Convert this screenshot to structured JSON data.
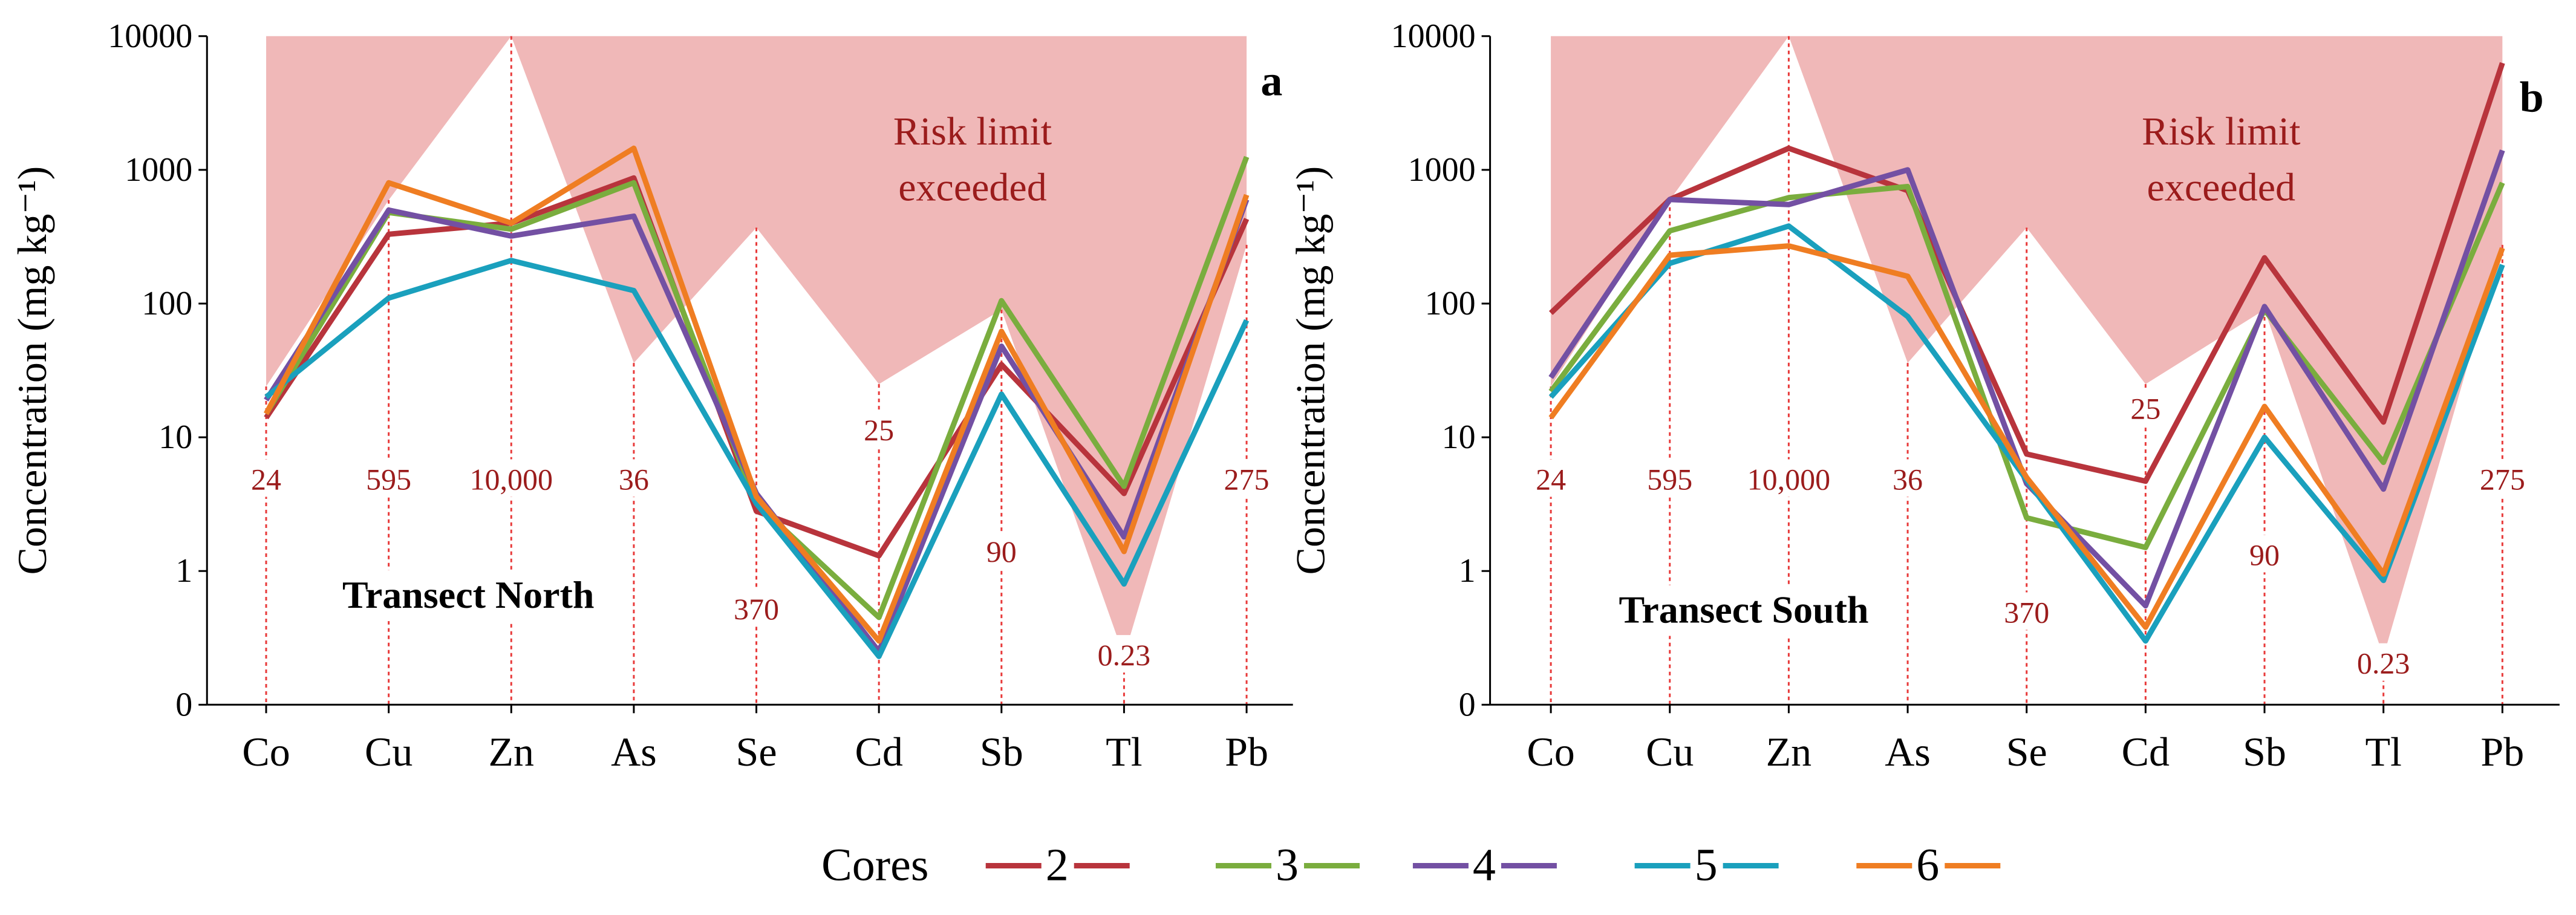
{
  "legend": {
    "title": "Cores",
    "entries": [
      "2",
      "3",
      "4",
      "5",
      "6"
    ],
    "colors": [
      "#b8343c",
      "#7aad3e",
      "#7350a3",
      "#1aa0bd",
      "#ef7d22"
    ]
  },
  "shading": {
    "color": "#f0b8b8"
  },
  "chart_data": [
    {
      "type": "line",
      "panel_letter": "a",
      "panel_title": "Transect North",
      "ylabel": "Concentration (mg kg⁻¹)",
      "yscale": "log (pseudo, 0 at bottom)",
      "yticks": [
        "10000",
        "1000",
        "100",
        "10",
        "1",
        "0"
      ],
      "categories": [
        "Co",
        "Cu",
        "Zn",
        "As",
        "Se",
        "Cd",
        "Sb",
        "Tl",
        "Pb"
      ],
      "shaded_region_label": "Risk limit exceeded",
      "risk_limits": [
        24,
        595,
        10000,
        36,
        370,
        25,
        90,
        0.23,
        275
      ],
      "risk_limit_labels": [
        "24",
        "595",
        "10,000",
        "36",
        "370",
        "25",
        "90",
        "0.23",
        "275"
      ],
      "series": [
        {
          "name": "2",
          "values": [
            14,
            330,
            400,
            870,
            2.8,
            1.3,
            35,
            3.8,
            430
          ]
        },
        {
          "name": "3",
          "values": [
            15,
            480,
            360,
            800,
            3.2,
            0.45,
            105,
            4.3,
            1250
          ]
        },
        {
          "name": "4",
          "values": [
            19,
            500,
            320,
            450,
            3.8,
            0.25,
            48,
            1.8,
            600
          ]
        },
        {
          "name": "5",
          "values": [
            20,
            110,
            210,
            125,
            3.2,
            0.23,
            21,
            0.8,
            75
          ]
        },
        {
          "name": "6",
          "values": [
            15,
            800,
            400,
            1450,
            3.6,
            0.3,
            62,
            1.4,
            650
          ]
        }
      ]
    },
    {
      "type": "line",
      "panel_letter": "b",
      "panel_title": "Transect South",
      "ylabel": "Concentration (mg kg⁻¹)",
      "yscale": "log (pseudo, 0 at bottom)",
      "yticks": [
        "10000",
        "1000",
        "100",
        "10",
        "1",
        "0"
      ],
      "categories": [
        "Co",
        "Cu",
        "Zn",
        "As",
        "Se",
        "Cd",
        "Sb",
        "Tl",
        "Pb"
      ],
      "shaded_region_label": "Risk limit exceeded",
      "risk_limits": [
        24,
        595,
        10000,
        36,
        370,
        25,
        90,
        0.23,
        275
      ],
      "risk_limit_labels": [
        "24",
        "595",
        "10,000",
        "36",
        "370",
        "25",
        "90",
        "0.23",
        "275"
      ],
      "series": [
        {
          "name": "2",
          "values": [
            85,
            600,
            1450,
            700,
            7.5,
            4.7,
            220,
            13,
            6300
          ]
        },
        {
          "name": "3",
          "values": [
            22,
            350,
            620,
            750,
            2.5,
            1.5,
            90,
            6.5,
            800
          ]
        },
        {
          "name": "4",
          "values": [
            28,
            600,
            550,
            1000,
            4.5,
            0.55,
            95,
            4.1,
            1400
          ]
        },
        {
          "name": "5",
          "values": [
            20,
            200,
            380,
            80,
            4.8,
            0.3,
            10,
            0.85,
            195
          ]
        },
        {
          "name": "6",
          "values": [
            14,
            230,
            270,
            160,
            5,
            0.38,
            17,
            0.95,
            260
          ]
        }
      ]
    }
  ]
}
